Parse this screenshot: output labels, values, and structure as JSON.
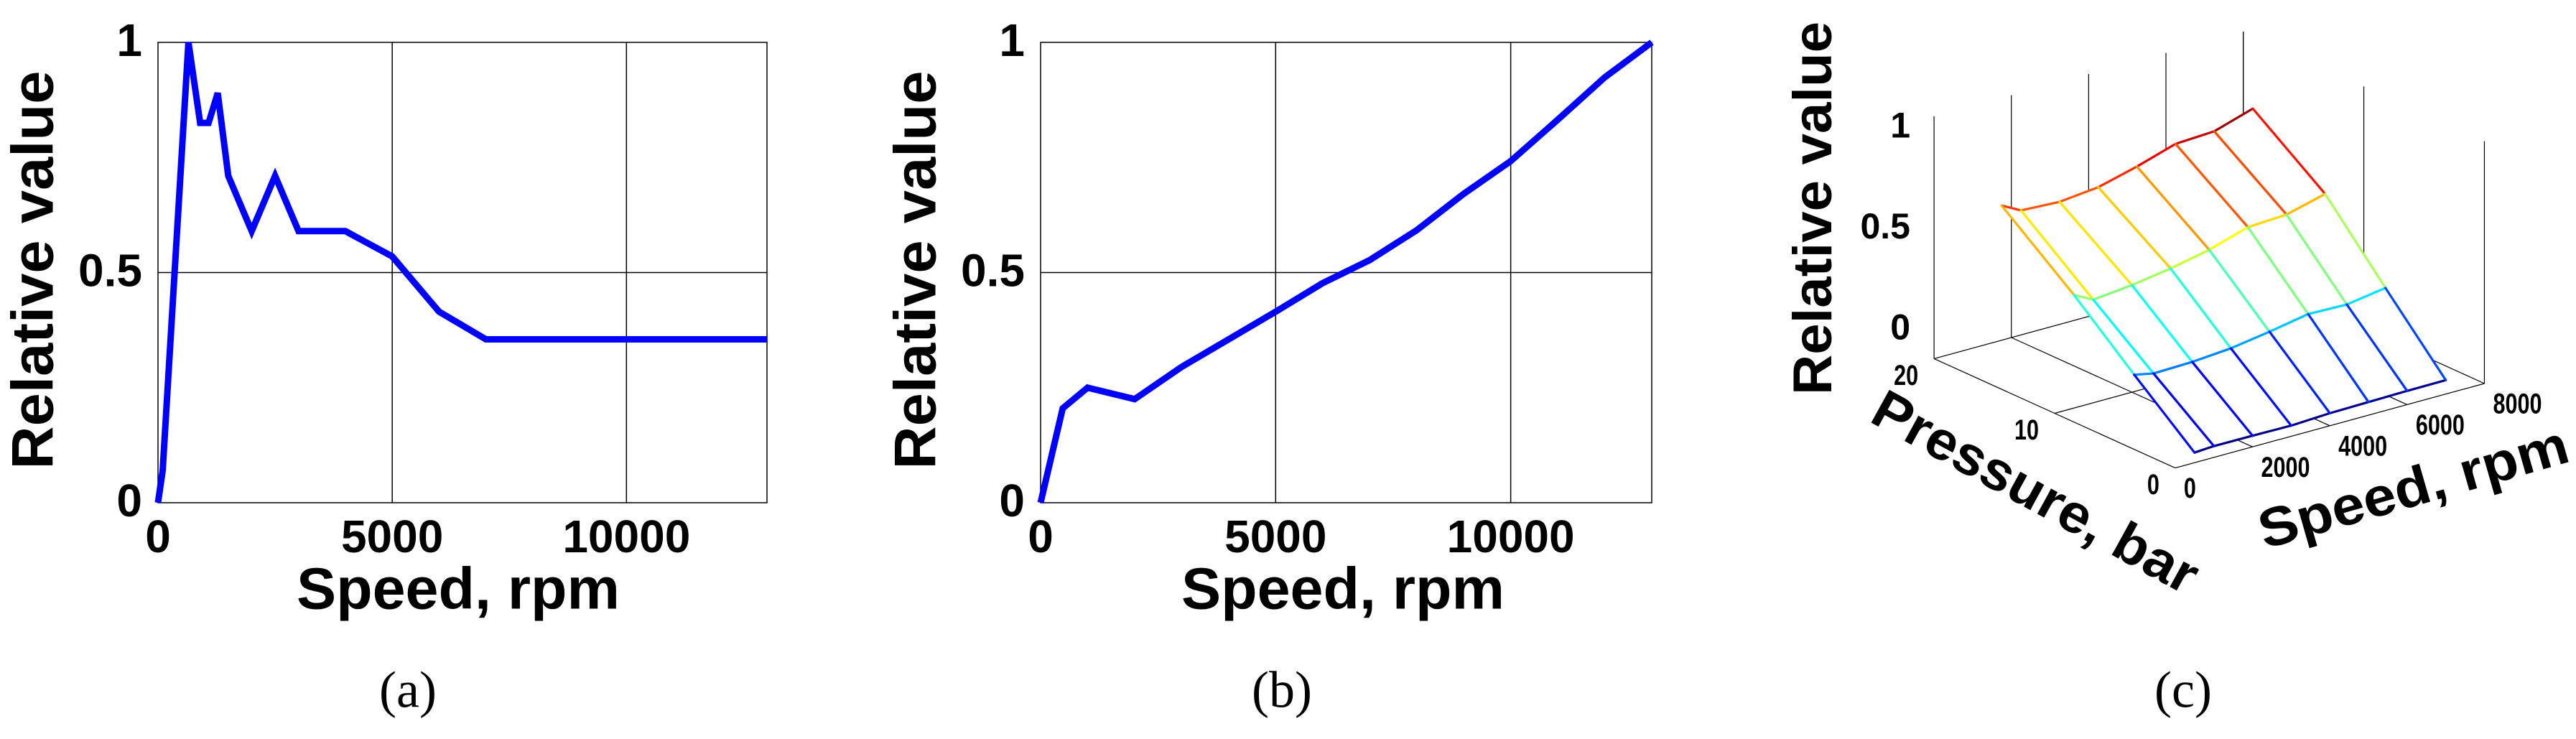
{
  "chart_data": [
    {
      "type": "line",
      "panel_label": "(a)",
      "xlabel": "Speed, rpm",
      "ylabel": "Relative value",
      "xlim": [
        0,
        13000
      ],
      "ylim": [
        0,
        1
      ],
      "xticks": [
        0,
        5000,
        10000
      ],
      "xtick_labels": [
        "0",
        "5000",
        "10000"
      ],
      "yticks": [
        0,
        0.5,
        1
      ],
      "ytick_labels": [
        "0",
        "0.5",
        "1"
      ],
      "grid": true,
      "color": "#0000ff",
      "x": [
        0,
        100,
        650,
        900,
        1080,
        1275,
        1500,
        2000,
        2500,
        3000,
        4000,
        5000,
        6000,
        7000,
        13000
      ],
      "y": [
        0,
        0.07,
        1.0,
        0.825,
        0.825,
        0.89,
        0.71,
        0.59,
        0.71,
        0.59,
        0.59,
        0.535,
        0.415,
        0.355,
        0.355
      ]
    },
    {
      "type": "line",
      "panel_label": "(b)",
      "xlabel": "Speed, rpm",
      "ylabel": "Relative value",
      "xlim": [
        0,
        13000
      ],
      "ylim": [
        0,
        1
      ],
      "xticks": [
        0,
        5000,
        10000
      ],
      "xtick_labels": [
        "0",
        "5000",
        "10000"
      ],
      "yticks": [
        0,
        0.5,
        1
      ],
      "ytick_labels": [
        "0",
        "0.5",
        "1"
      ],
      "grid": true,
      "color": "#0000ff",
      "x": [
        0,
        470,
        1000,
        2000,
        3000,
        4000,
        5000,
        6000,
        7000,
        8000,
        9000,
        10000,
        11000,
        12000,
        13000
      ],
      "y": [
        0,
        0.205,
        0.25,
        0.225,
        0.295,
        0.355,
        0.415,
        0.477,
        0.527,
        0.592,
        0.671,
        0.742,
        0.832,
        0.924,
        1.0
      ]
    },
    {
      "type": "surface",
      "panel_label": "(c)",
      "xlabel": "Speed, rpm",
      "ylabel": "Pressure, bar",
      "zlabel": "Relative value",
      "xlim": [
        0,
        8000
      ],
      "ylim": [
        0,
        20
      ],
      "zlim": [
        0,
        1.2
      ],
      "xticks": [
        0,
        2000,
        4000,
        6000,
        8000
      ],
      "xtick_labels": [
        "0",
        "2000",
        "4000",
        "6000",
        "8000"
      ],
      "yticks": [
        0,
        10,
        20
      ],
      "ytick_labels": [
        "0",
        "10",
        "20"
      ],
      "zticks": [
        0,
        0.5,
        1
      ],
      "ztick_labels": [
        "0",
        "0.5",
        "1"
      ],
      "colormap": "jet",
      "speed": [
        500,
        1000,
        2000,
        3000,
        4000,
        5000,
        6000,
        7000
      ],
      "pressure": [
        0,
        5,
        10,
        16
      ],
      "z": [
        [
          0.05,
          0.056,
          0.055,
          0.053,
          0.062,
          0.065,
          0.068,
          0.069
        ],
        [
          0.3,
          0.28,
          0.285,
          0.3,
          0.33,
          0.365,
          0.36,
          0.39
        ],
        [
          0.56,
          0.51,
          0.53,
          0.56,
          0.6,
          0.66,
          0.67,
          0.72
        ],
        [
          0.84,
          0.79,
          0.78,
          0.8,
          0.85,
          0.91,
          0.92,
          0.98
        ]
      ]
    }
  ]
}
